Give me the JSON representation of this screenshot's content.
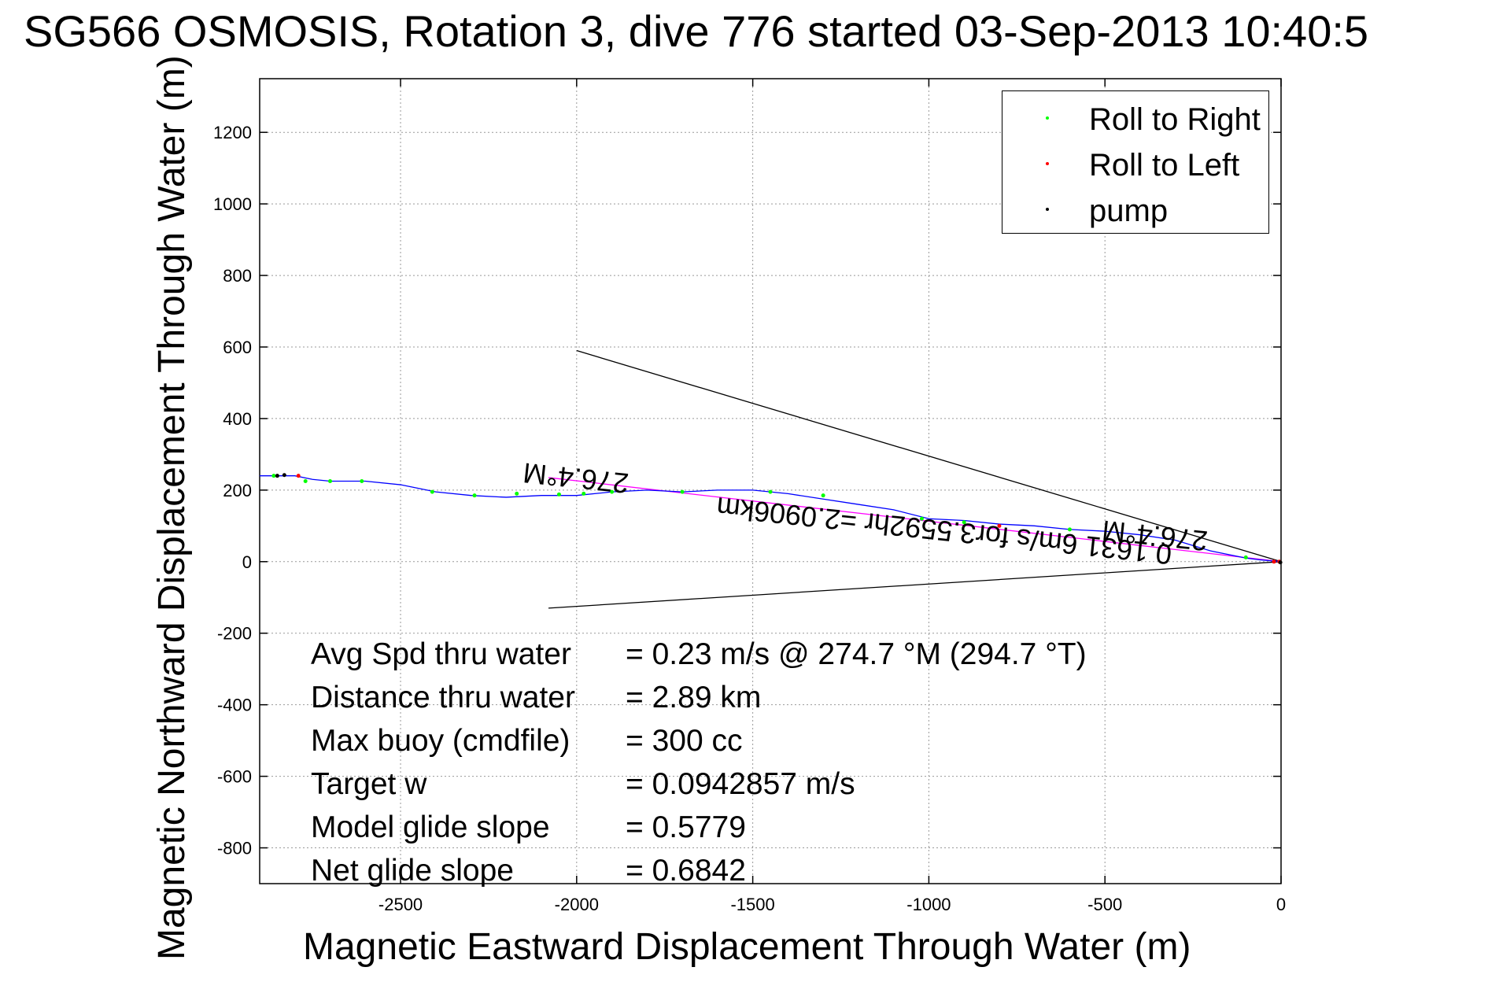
{
  "title": "SG566 OSMOSIS, Rotation 3, dive 776 started 03-Sep-2013 10:40:5",
  "chart_data": {
    "type": "line",
    "title": "SG566 OSMOSIS, Rotation 3, dive 776 started 03-Sep-2013 10:40:5",
    "xlabel": "Magnetic Eastward Displacement Through Water (m)",
    "ylabel": "Magnetic Northward Displacement Through Water (m)",
    "xlim": [
      -2900,
      0
    ],
    "ylim": [
      -900,
      1350
    ],
    "xticks": [
      -2500,
      -2000,
      -1500,
      -1000,
      -500,
      0
    ],
    "yticks": [
      -800,
      -600,
      -400,
      -200,
      0,
      200,
      400,
      600,
      800,
      1000,
      1200
    ],
    "grid": true,
    "legend_position": "top-right",
    "series": [
      {
        "name": "track",
        "color": "#0000ff",
        "x": [
          0,
          -60,
          -100,
          -200,
          -300,
          -400,
          -500,
          -600,
          -700,
          -800,
          -900,
          -1000,
          -1100,
          -1200,
          -1300,
          -1400,
          -1500,
          -1600,
          -1700,
          -1800,
          -1900,
          -2000,
          -2100,
          -2200,
          -2300,
          -2400,
          -2500,
          -2600,
          -2700,
          -2750,
          -2800,
          -2850,
          -2900
        ],
        "y": [
          0,
          5,
          10,
          30,
          60,
          75,
          85,
          90,
          100,
          105,
          115,
          120,
          145,
          160,
          175,
          190,
          200,
          200,
          195,
          200,
          195,
          185,
          185,
          180,
          185,
          195,
          215,
          225,
          225,
          230,
          240,
          240,
          240
        ]
      },
      {
        "name": "Roll to Right",
        "color": "#00ff00",
        "x": [
          -100,
          -600,
          -900,
          -1020,
          -1300,
          -1450,
          -1700,
          -1900,
          -1980,
          -2050,
          -2170,
          -2290,
          -2410,
          -2610,
          -2700,
          -2770,
          -2860
        ],
        "y": [
          12,
          90,
          110,
          120,
          185,
          195,
          195,
          195,
          190,
          188,
          190,
          185,
          195,
          225,
          225,
          225,
          240
        ]
      },
      {
        "name": "Roll to Left",
        "color": "#ff0000",
        "x": [
          -5,
          -20,
          -800,
          -2790
        ],
        "y": [
          0,
          0,
          100,
          240
        ]
      },
      {
        "name": "pump",
        "color": "#000000",
        "x": [
          -2,
          -2850,
          -2830
        ],
        "y": [
          -2,
          240,
          242
        ]
      }
    ],
    "lines": [
      {
        "name": "upper-bound",
        "color": "#000000",
        "x": [
          0,
          -2000
        ],
        "y": [
          0,
          590
        ]
      },
      {
        "name": "lower-bound",
        "color": "#000000",
        "x": [
          0,
          -2080
        ],
        "y": [
          0,
          -130
        ]
      },
      {
        "name": "avg-heading",
        "color": "#ff00ff",
        "x": [
          0,
          -2080
        ],
        "y": [
          0,
          235
        ]
      }
    ],
    "annotations": {
      "heading_a": "276.4°M",
      "speed_text": "0.1631 6m/s for3.5592hr =2.0906km",
      "heading_b": "276.4°M"
    }
  },
  "legend": [
    {
      "label": "Roll to Right",
      "color": "#00ff00"
    },
    {
      "label": "Roll to Left",
      "color": "#ff0000"
    },
    {
      "label": "pump",
      "color": "#000000"
    }
  ],
  "stats": [
    {
      "label": "Avg Spd thru water",
      "value": "=  0.23 m/s @ 274.7 °M (294.7 °T)"
    },
    {
      "label": "Distance thru water",
      "value": "=  2.89 km"
    },
    {
      "label": "Max buoy (cmdfile)",
      "value": "= 300 cc"
    },
    {
      "label": "Target w",
      "value": "= 0.0942857 m/s"
    },
    {
      "label": "Model glide slope",
      "value": "= 0.5779"
    },
    {
      "label": "Net glide slope",
      "value": "= 0.6842"
    }
  ]
}
